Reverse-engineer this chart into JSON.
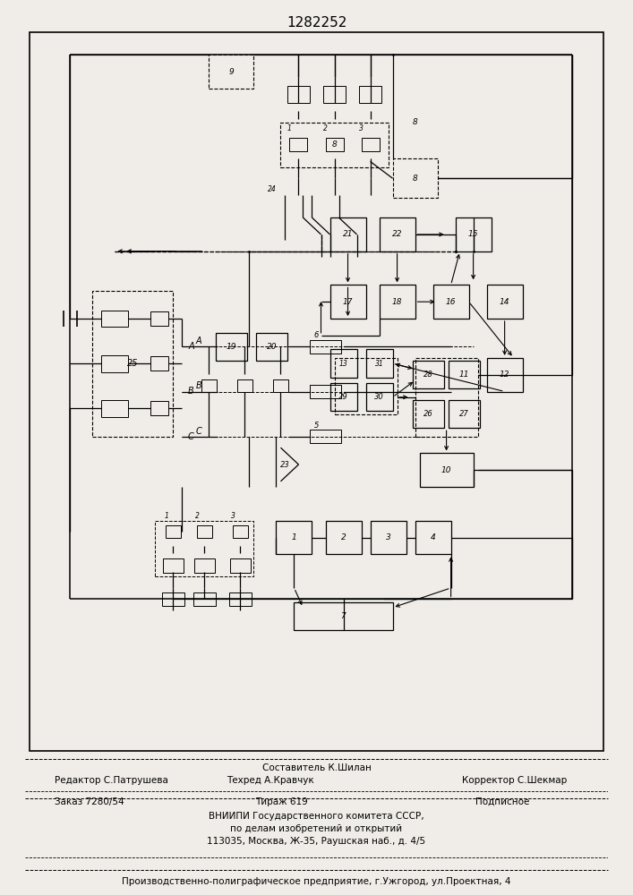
{
  "patent_number": "1282252",
  "bg_color": "#f0ede8",
  "diagram_bg": "#ffffff",
  "footer": {
    "line1_center": "Составитель К.Шилан",
    "line2_left": "Редактор С.Патрушева",
    "line2_center": "Техред А.Кравчук",
    "line2_right": "Корректор С.Шекмар",
    "line3_left": "Заказ 7280/54",
    "line3_center": "Тираж 619",
    "line3_right": "Подписное",
    "line4": "ВНИИПИ Государственного комитета СССР,",
    "line5": "по делам изобретений и открытий",
    "line6": "113035, Москва, Ж-35, Раушская наб., д. 4/5",
    "line7": "Производственно-полиграфическое предприятие, г.Ужгород, ул.Проектная, 4"
  }
}
